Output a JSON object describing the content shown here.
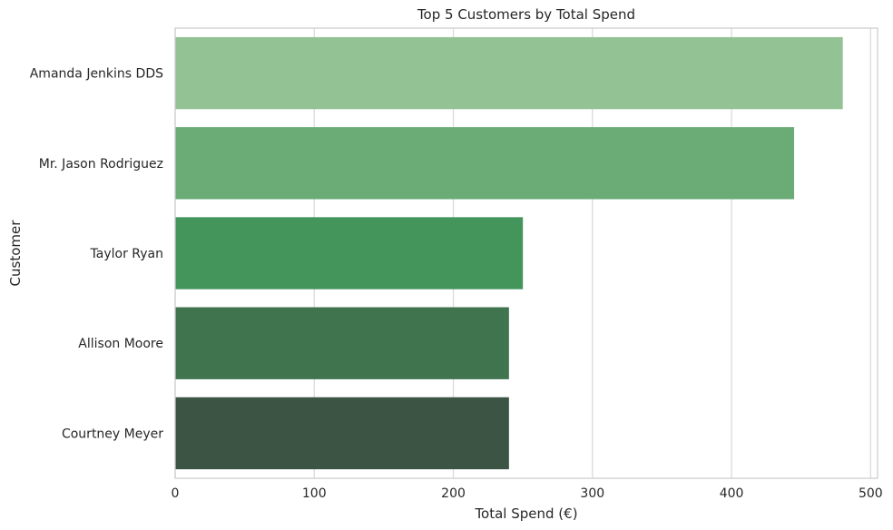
{
  "chart_data": {
    "type": "bar",
    "orientation": "horizontal",
    "title": "Top 5 Customers by Total Spend",
    "xlabel": "Total Spend (€)",
    "ylabel": "Customer",
    "xlim": [
      0,
      505
    ],
    "xticks": [
      0,
      100,
      200,
      300,
      400,
      500
    ],
    "grid": true,
    "categories": [
      "Amanda Jenkins DDS",
      "Mr. Jason Rodriguez",
      "Taylor Ryan",
      "Allison Moore",
      "Courtney Meyer"
    ],
    "values": [
      480,
      445,
      250,
      240,
      240
    ],
    "colors": [
      "#93c394",
      "#6aab76",
      "#43955c",
      "#40744f",
      "#3b5443"
    ]
  }
}
